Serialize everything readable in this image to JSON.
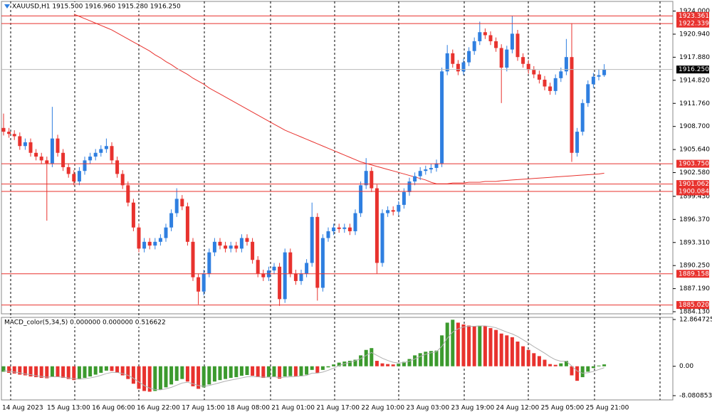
{
  "chart_data": [
    {
      "type": "candlestick",
      "title": "XAUUSD,H1  1915.500 1916.960 1915.280 1916.250",
      "up_color": "#2f7fe0",
      "down_color": "#e8322e",
      "level_color": "#e8322e",
      "price_color": "#b8b8b8",
      "ylim": [
        1883.85,
        1925.28
      ],
      "yticks": [
        {
          "value": 1924,
          "label": "1924.000"
        },
        {
          "value": 1920.94,
          "label": "1920.940"
        },
        {
          "value": 1917.88,
          "label": "1917.880"
        },
        {
          "value": 1914.82,
          "label": "1914.820"
        },
        {
          "value": 1911.76,
          "label": "1911.760"
        },
        {
          "value": 1908.7,
          "label": "1908.700"
        },
        {
          "value": 1905.64,
          "label": "1905.640"
        },
        {
          "value": 1902.58,
          "label": "1902.580"
        },
        {
          "value": 1899.43,
          "label": "1899.430"
        },
        {
          "value": 1896.37,
          "label": "1896.370"
        },
        {
          "value": 1893.31,
          "label": "1893.310"
        },
        {
          "value": 1890.25,
          "label": "1890.250"
        },
        {
          "value": 1887.19,
          "label": "1887.190"
        },
        {
          "value": 1884.13,
          "label": "1884.130"
        }
      ],
      "levels": [
        1923.361,
        1922.339,
        {
          "value": 1903.75,
          "label": "1903.750"
        },
        1901.062,
        1900.084,
        1889.158,
        {
          "value": 1885.02,
          "label": "1885.020"
        }
      ],
      "last_price": {
        "value": 1916.25,
        "label": "1916.250"
      },
      "x_labels": [
        "14 Aug 2023",
        "15 Aug 13:00",
        "16 Aug 06:00",
        "16 Aug 22:00",
        "17 Aug 15:00",
        "18 Aug 08:00",
        "21 Aug 01:00",
        "21 Aug 17:00",
        "22 Aug 10:00",
        "23 Aug 03:00",
        "23 Aug 19:00",
        "24 Aug 12:00",
        "25 Aug 05:00",
        "25 Aug 21:00"
      ],
      "open": [
        1908.5,
        1908.0,
        1907.7,
        1907.4,
        1906.1,
        1906.6,
        1905.2,
        1904.7,
        1904.2,
        1903.8,
        1907.1,
        1905.2,
        1903.3,
        1902.4,
        1901.4,
        1902.8,
        1904.2,
        1904.7,
        1905.2,
        1905.7,
        1906.1,
        1904.2,
        1902.4,
        1900.9,
        1898.6,
        1895.3,
        1892.5,
        1893.4,
        1892.9,
        1893.4,
        1893.9,
        1895.3,
        1897.2,
        1899.1,
        1898.1,
        1893.4,
        1888.7,
        1886.8,
        1889.2,
        1892.0,
        1893.4,
        1892.9,
        1892.5,
        1892.9,
        1892.5,
        1893.9,
        1893.4,
        1891.0,
        1889.2,
        1888.7,
        1889.6,
        1890.1,
        1885.8,
        1892.0,
        1889.2,
        1888.2,
        1889.2,
        1890.6,
        1896.7,
        1887.3,
        1893.9,
        1894.8,
        1895.3,
        1895.1,
        1895.3,
        1894.8,
        1897.2,
        1900.9,
        1902.8,
        1900.5,
        1890.6,
        1897.2,
        1897.6,
        1897.4,
        1898.3,
        1900.0,
        1901.4,
        1902.1,
        1902.8,
        1903.0,
        1903.2,
        1903.8,
        1916.0,
        1918.4,
        1917.0,
        1916.0,
        1917.2,
        1918.7,
        1920.0,
        1921.2,
        1920.8,
        1920.0,
        1919.1,
        1916.5,
        1918.9,
        1921.0,
        1917.9,
        1917.0,
        1916.2,
        1915.6,
        1914.9,
        1914.0,
        1913.4,
        1915.1,
        1916.0,
        1917.9,
        1905.2,
        1908.0,
        1911.8,
        1914.3,
        1915.3,
        1915.5
      ],
      "high": [
        1910.4,
        1908.5,
        1908.2,
        1907.9,
        1907.1,
        1907.1,
        1905.7,
        1905.2,
        1904.7,
        1911.3,
        1907.6,
        1905.7,
        1903.8,
        1902.9,
        1903.3,
        1904.7,
        1905.2,
        1905.7,
        1906.2,
        1907.1,
        1906.6,
        1904.7,
        1902.9,
        1901.4,
        1899.1,
        1895.8,
        1893.9,
        1893.9,
        1893.9,
        1894.4,
        1895.8,
        1897.7,
        1900.5,
        1899.6,
        1898.6,
        1893.9,
        1889.2,
        1889.7,
        1892.5,
        1893.9,
        1893.9,
        1893.4,
        1893.4,
        1893.4,
        1894.4,
        1894.4,
        1893.9,
        1891.5,
        1889.7,
        1890.1,
        1890.6,
        1890.6,
        1892.5,
        1892.5,
        1889.7,
        1889.7,
        1891.1,
        1898.6,
        1897.2,
        1894.4,
        1895.3,
        1895.8,
        1895.8,
        1895.8,
        1895.8,
        1897.7,
        1901.4,
        1904.5,
        1903.3,
        1901.0,
        1897.7,
        1898.1,
        1898.1,
        1898.8,
        1900.5,
        1901.9,
        1902.6,
        1903.3,
        1903.5,
        1903.7,
        1904.3,
        1916.5,
        1919.5,
        1918.9,
        1917.5,
        1917.7,
        1919.2,
        1920.5,
        1922.6,
        1921.7,
        1921.3,
        1920.5,
        1919.6,
        1919.4,
        1923.4,
        1921.5,
        1918.4,
        1917.5,
        1916.7,
        1916.1,
        1915.4,
        1914.5,
        1915.6,
        1916.5,
        1920.3,
        1922.4,
        1908.5,
        1912.3,
        1914.8,
        1915.8,
        1916.3,
        1916.96
      ],
      "low": [
        1907.5,
        1907.2,
        1906.9,
        1905.6,
        1905.6,
        1904.7,
        1904.2,
        1903.7,
        1896.2,
        1903.3,
        1904.7,
        1902.8,
        1901.9,
        1900.9,
        1900.9,
        1902.3,
        1903.7,
        1904.2,
        1904.7,
        1905.2,
        1903.7,
        1901.9,
        1900.4,
        1898.1,
        1894.8,
        1892.0,
        1892.0,
        1892.4,
        1892.4,
        1892.9,
        1893.4,
        1894.8,
        1896.7,
        1897.6,
        1892.9,
        1888.2,
        1885.1,
        1886.3,
        1888.7,
        1891.5,
        1892.4,
        1892.0,
        1892.0,
        1892.0,
        1892.0,
        1892.9,
        1890.5,
        1888.7,
        1888.2,
        1888.2,
        1889.1,
        1884.9,
        1885.3,
        1888.7,
        1887.7,
        1887.7,
        1888.7,
        1890.1,
        1885.6,
        1886.8,
        1893.4,
        1894.3,
        1894.6,
        1894.6,
        1894.3,
        1894.3,
        1896.7,
        1900.4,
        1900.0,
        1889.2,
        1890.1,
        1896.7,
        1896.9,
        1896.9,
        1897.8,
        1899.5,
        1900.9,
        1901.6,
        1902.3,
        1902.5,
        1902.7,
        1903.3,
        1915.5,
        1916.5,
        1915.5,
        1915.5,
        1916.7,
        1918.2,
        1919.5,
        1920.3,
        1919.5,
        1918.6,
        1911.8,
        1916.0,
        1918.4,
        1917.4,
        1916.5,
        1915.7,
        1915.1,
        1914.4,
        1913.5,
        1912.9,
        1912.9,
        1914.6,
        1915.5,
        1904.0,
        1904.7,
        1907.5,
        1911.3,
        1913.8,
        1914.8,
        1915.28
      ],
      "close": [
        1908.0,
        1907.7,
        1907.4,
        1906.1,
        1906.6,
        1905.2,
        1904.7,
        1904.2,
        1903.8,
        1907.1,
        1905.2,
        1903.3,
        1902.4,
        1901.4,
        1902.8,
        1904.2,
        1904.7,
        1905.2,
        1905.7,
        1906.1,
        1904.2,
        1902.4,
        1900.9,
        1898.6,
        1895.3,
        1892.5,
        1893.4,
        1892.9,
        1893.4,
        1893.9,
        1895.3,
        1897.2,
        1899.1,
        1898.1,
        1893.4,
        1888.7,
        1886.8,
        1889.2,
        1892.0,
        1893.4,
        1892.9,
        1892.5,
        1892.9,
        1892.5,
        1893.9,
        1893.4,
        1891.0,
        1889.2,
        1888.7,
        1889.6,
        1890.1,
        1885.8,
        1892.0,
        1889.2,
        1888.2,
        1889.2,
        1890.6,
        1896.7,
        1887.3,
        1893.9,
        1894.8,
        1895.3,
        1895.1,
        1895.3,
        1894.8,
        1897.2,
        1900.9,
        1902.8,
        1900.5,
        1890.6,
        1897.2,
        1897.6,
        1897.4,
        1898.3,
        1900.0,
        1901.4,
        1902.1,
        1902.8,
        1903.0,
        1903.2,
        1903.8,
        1916.0,
        1918.4,
        1917.0,
        1916.0,
        1917.2,
        1918.7,
        1920.0,
        1921.2,
        1920.8,
        1920.0,
        1919.1,
        1916.5,
        1918.9,
        1921.0,
        1917.9,
        1917.0,
        1916.2,
        1915.6,
        1914.9,
        1914.0,
        1913.4,
        1915.1,
        1916.0,
        1917.9,
        1905.2,
        1908.0,
        1911.8,
        1914.3,
        1915.3,
        1915.5,
        1916.25
      ],
      "ma": {
        "color": "#e8322e",
        "values": [
          null,
          null,
          null,
          null,
          null,
          null,
          null,
          null,
          null,
          null,
          null,
          null,
          null,
          1923.6,
          1923.3,
          1923.0,
          1922.7,
          1922.4,
          1922.1,
          1921.8,
          1921.5,
          1921.1,
          1920.7,
          1920.3,
          1919.9,
          1919.5,
          1919.1,
          1918.7,
          1918.2,
          1917.8,
          1917.3,
          1916.9,
          1916.4,
          1916.0,
          1915.6,
          1915.1,
          1914.7,
          1914.3,
          1913.8,
          1913.4,
          1913.0,
          1912.6,
          1912.2,
          1911.8,
          1911.4,
          1911.0,
          1910.6,
          1910.2,
          1909.8,
          1909.4,
          1909.0,
          1908.6,
          1908.2,
          1907.9,
          1907.6,
          1907.3,
          1907.0,
          1906.7,
          1906.4,
          1906.1,
          1905.8,
          1905.5,
          1905.2,
          1904.9,
          1904.6,
          1904.3,
          1904.0,
          1903.8,
          1903.6,
          1903.4,
          1903.2,
          1903.0,
          1902.8,
          1902.6,
          1902.4,
          1902.2,
          1902.0,
          1901.8,
          1901.6,
          1901.3,
          1901.1,
          1901.1,
          1901.1,
          1901.2,
          1901.2,
          1901.2,
          1901.3,
          1901.3,
          1901.3,
          1901.4,
          1901.4,
          1901.4,
          1901.5,
          1901.55,
          1901.6,
          1901.65,
          1901.7,
          1901.75,
          1901.8,
          1901.85,
          1901.9,
          1901.95,
          1902.0,
          1902.05,
          1902.1,
          1902.15,
          1902.2,
          1902.25,
          1902.3,
          1902.35,
          1902.4,
          1902.5
        ]
      }
    },
    {
      "type": "bar",
      "title": "MACD_color(5,34,5) 0.000000 0.000000 0.516622",
      "up_color": "#3c9a2e",
      "down_color": "#e8322e",
      "signal_color": "#b0b0b0",
      "ylim": [
        -8.080853,
        12.864725
      ],
      "yticks": [
        12.864725,
        {
          "value": 0,
          "label": "0.00"
        },
        -8.080853
      ],
      "values": [
        -1.5,
        -1.8,
        -2.0,
        -2.3,
        -2.5,
        -2.8,
        -3.0,
        -3.2,
        -3.3,
        -2.8,
        -2.9,
        -3.2,
        -3.5,
        -3.8,
        -3.6,
        -3.2,
        -2.8,
        -2.3,
        -1.8,
        -1.2,
        -1.3,
        -1.8,
        -2.5,
        -3.5,
        -4.8,
        -6.2,
        -6.8,
        -7.0,
        -6.8,
        -6.4,
        -5.8,
        -5.0,
        -4.0,
        -3.5,
        -4.2,
        -5.5,
        -6.2,
        -5.8,
        -5.0,
        -4.2,
        -3.8,
        -3.5,
        -3.2,
        -3.0,
        -2.6,
        -2.4,
        -2.6,
        -3.0,
        -3.2,
        -3.0,
        -2.8,
        -3.4,
        -2.8,
        -2.7,
        -2.8,
        -2.6,
        -2.3,
        -1.0,
        -1.8,
        -1.0,
        -0.3,
        0.5,
        1.0,
        1.3,
        1.5,
        1.8,
        3.0,
        4.5,
        5.0,
        1.5,
        0.8,
        0.6,
        0.5,
        0.7,
        1.2,
        2.0,
        3.0,
        3.6,
        4.0,
        4.2,
        4.3,
        8.5,
        12.0,
        12.8,
        12.0,
        11.5,
        11.2,
        11.0,
        11.2,
        11.0,
        10.5,
        10.0,
        9.0,
        8.5,
        8.0,
        6.8,
        5.5,
        4.5,
        3.6,
        2.8,
        1.8,
        0.6,
        0.4,
        0.8,
        1.5,
        -2.5,
        -4.0,
        -3.0,
        -1.5,
        -0.5,
        0.2,
        0.516622
      ],
      "signal": [
        -1.2,
        -1.4,
        -1.6,
        -1.8,
        -2.1,
        -2.3,
        -2.6,
        -2.8,
        -3.0,
        -2.9,
        -2.9,
        -3.0,
        -3.2,
        -3.4,
        -3.5,
        -3.4,
        -3.2,
        -2.9,
        -2.5,
        -2.0,
        -1.7,
        -1.7,
        -2.0,
        -2.5,
        -3.3,
        -4.3,
        -5.3,
        -6.0,
        -6.4,
        -6.5,
        -6.2,
        -5.8,
        -5.2,
        -4.6,
        -4.4,
        -4.8,
        -5.3,
        -5.5,
        -5.3,
        -4.9,
        -4.5,
        -4.1,
        -3.8,
        -3.5,
        -3.2,
        -2.9,
        -2.8,
        -2.9,
        -3.0,
        -3.0,
        -2.9,
        -3.1,
        -3.0,
        -2.9,
        -2.8,
        -2.7,
        -2.5,
        -1.9,
        -1.9,
        -1.6,
        -1.1,
        -0.5,
        0.2,
        0.7,
        1.1,
        1.5,
        2.1,
        3.0,
        3.8,
        3.0,
        2.2,
        1.6,
        1.1,
        0.9,
        1.0,
        1.4,
        2.0,
        2.7,
        3.3,
        3.7,
        4.0,
        5.5,
        7.7,
        9.4,
        10.3,
        10.8,
        11.0,
        11.0,
        11.1,
        11.1,
        10.9,
        10.6,
        10.0,
        9.4,
        8.9,
        8.2,
        7.3,
        6.4,
        5.4,
        4.5,
        3.6,
        2.6,
        1.8,
        1.4,
        1.4,
        0.1,
        -1.3,
        -1.9,
        -1.8,
        -1.4,
        -0.9,
        -0.4
      ]
    }
  ]
}
